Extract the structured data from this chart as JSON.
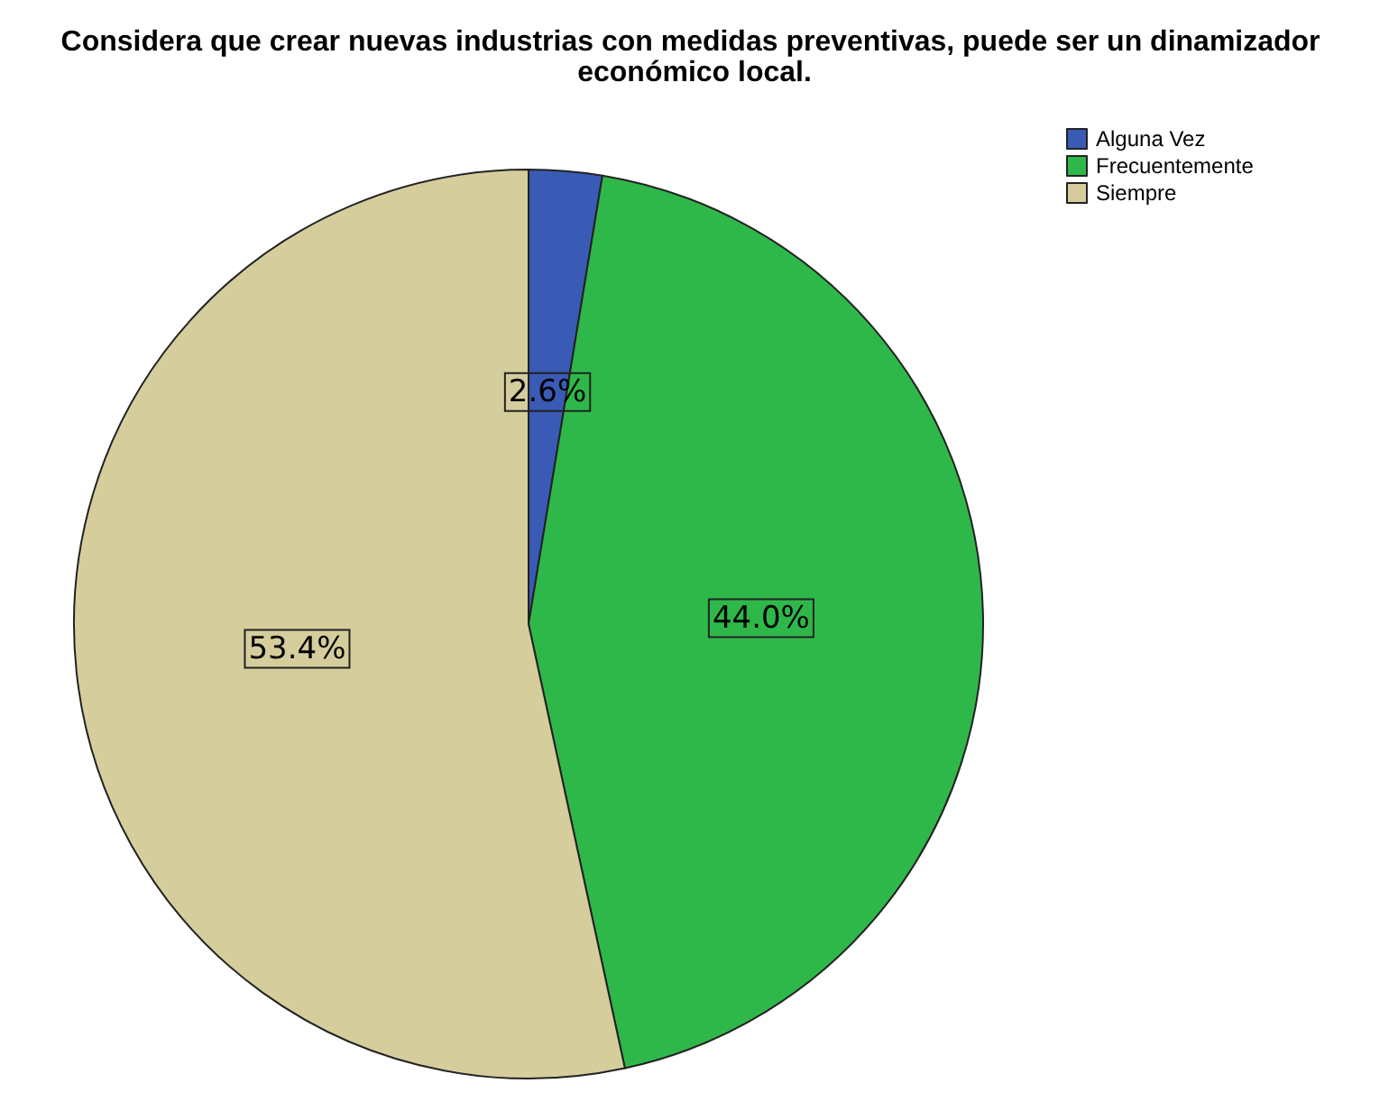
{
  "chart_data": {
    "type": "pie",
    "title": "Considera que crear nuevas industrias con medidas preventivas, puede ser un dinamizador económico local.",
    "categories": [
      "Alguna Vez",
      "Frecuentemente",
      "Siempre"
    ],
    "values": [
      2.6,
      44.0,
      53.4
    ],
    "colors": [
      "#3a5bb5",
      "#2fb84a",
      "#d5cd9c"
    ],
    "value_labels": [
      "2.6%",
      "44.0%",
      "53.4%"
    ],
    "legend": "top right"
  }
}
